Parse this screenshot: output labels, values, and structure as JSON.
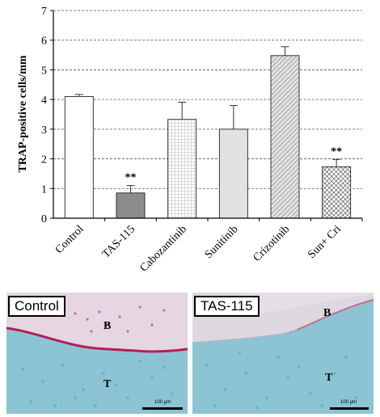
{
  "chart_data": {
    "type": "bar",
    "ylabel": "TRAP-positive cells/mm",
    "ylim": [
      0,
      7
    ],
    "yticks": [
      0,
      1,
      2,
      3,
      4,
      5,
      6,
      7
    ],
    "grid": "horizontal dashed",
    "categories": [
      "Control",
      "TAS-115",
      "Cabozantinib",
      "Sunitinib",
      "Crizotinib",
      "Sun+ Cri"
    ],
    "values": [
      4.1,
      0.85,
      3.33,
      3.0,
      5.48,
      1.73
    ],
    "errors": [
      0.07,
      0.25,
      0.58,
      0.8,
      0.3,
      0.25
    ],
    "significance": [
      "",
      "**",
      "",
      "",
      "",
      "**"
    ],
    "fills": [
      "white",
      "gray-solid",
      "grid-pattern",
      "light-gray",
      "diagonal-hatch",
      "crosshatch"
    ]
  },
  "panels": {
    "control": {
      "label": "Control",
      "bone_label": "B",
      "tissue_label": "T",
      "scale": "100 μm"
    },
    "tas115": {
      "label": "TAS-115",
      "bone_label": "B",
      "tissue_label": "T",
      "scale": "100 μm"
    }
  }
}
